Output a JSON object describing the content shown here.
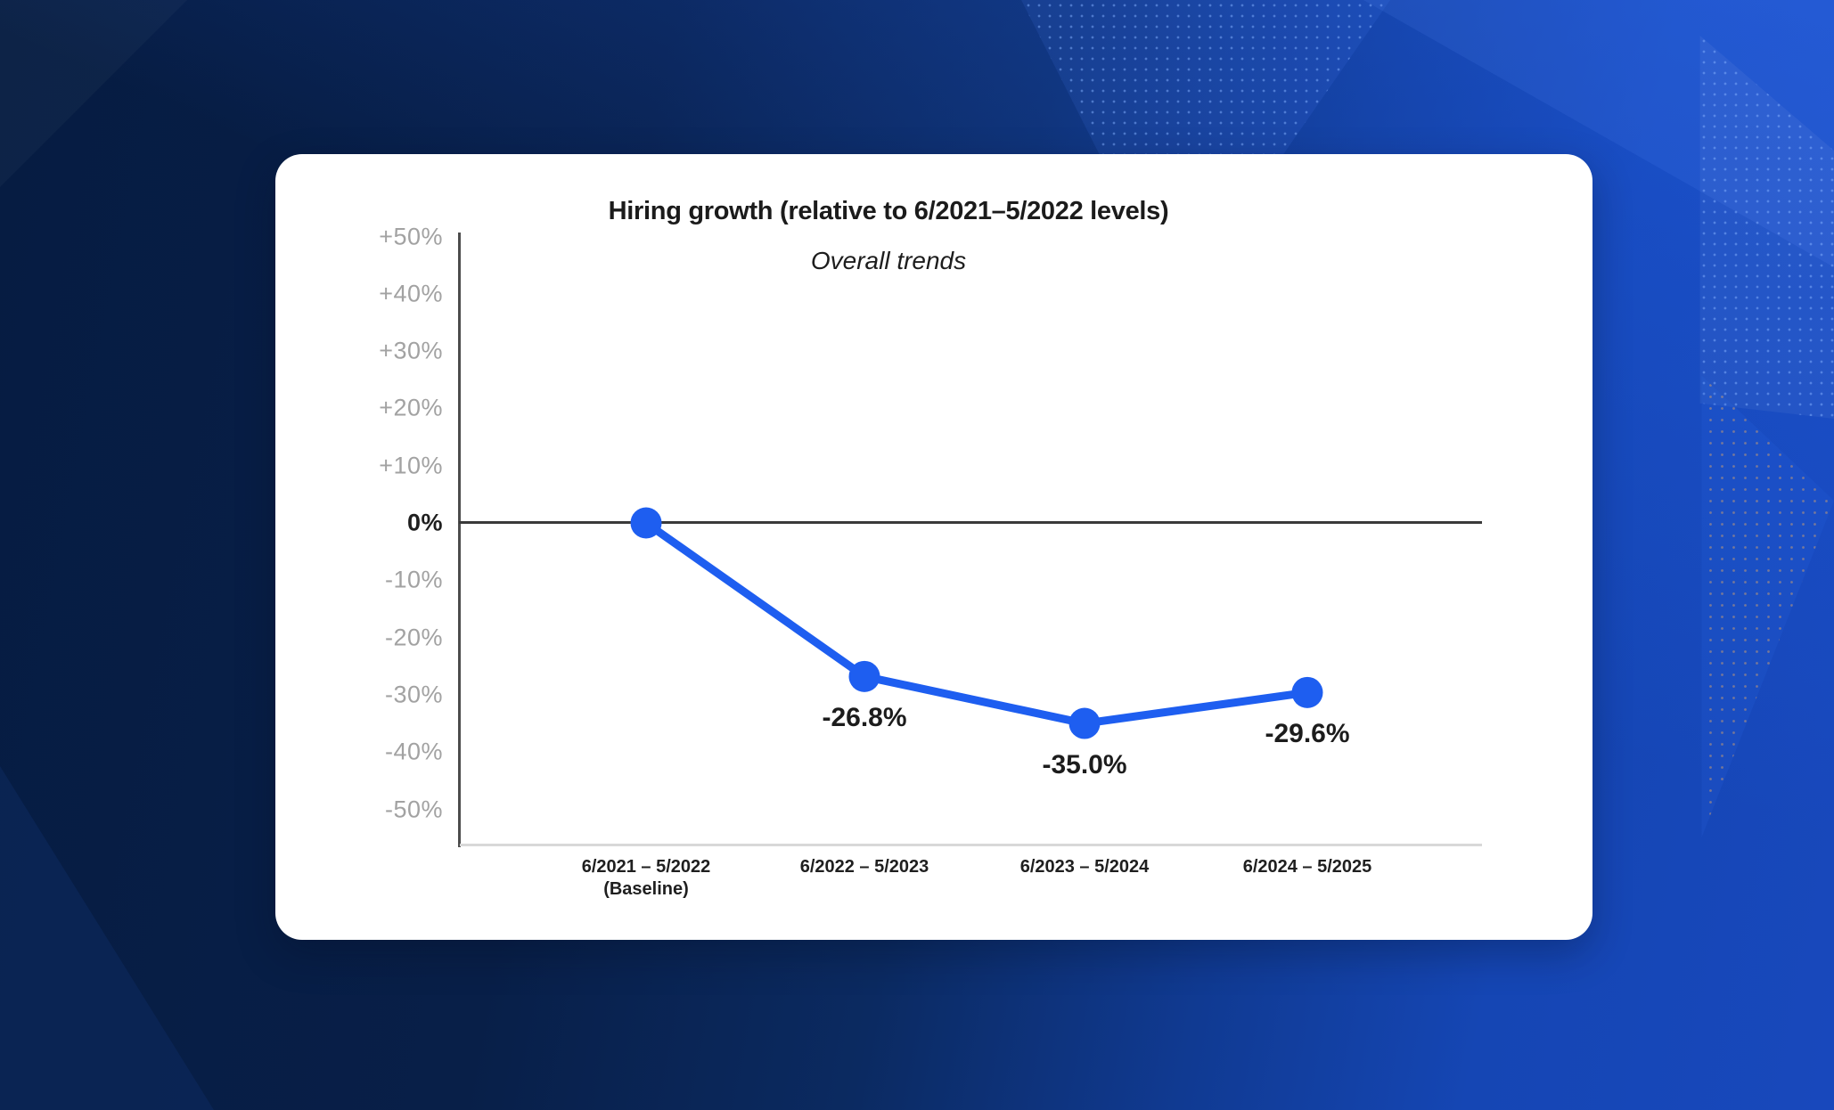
{
  "page": {
    "background_base_color": "#081f48",
    "background_accent_color": "#1c52d6"
  },
  "card": {
    "title": "Hiring growth (relative to 6/2021–5/2022 levels)",
    "subtitle": "Overall trends"
  },
  "chart_data": {
    "type": "line",
    "title": "Hiring growth (relative to 6/2021–5/2022 levels)",
    "subtitle": "Overall trends",
    "categories": [
      "6/2021 – 5/2022",
      "6/2022 – 5/2023",
      "6/2023 – 5/2024",
      "6/2024 – 5/2025"
    ],
    "category_sublabels": [
      "(Baseline)",
      "",
      "",
      ""
    ],
    "values": [
      0,
      -26.8,
      -35.0,
      -29.6
    ],
    "point_labels": [
      "",
      "-26.8%",
      "-35.0%",
      "-29.6%"
    ],
    "unit": "%",
    "ylim": [
      -50,
      50
    ],
    "y_ticks": [
      {
        "value": 50,
        "label": "+50%"
      },
      {
        "value": 40,
        "label": "+40%"
      },
      {
        "value": 30,
        "label": "+30%"
      },
      {
        "value": 20,
        "label": "+20%"
      },
      {
        "value": 10,
        "label": "+10%"
      },
      {
        "value": 0,
        "label": "0%"
      },
      {
        "value": -10,
        "label": "-10%"
      },
      {
        "value": -20,
        "label": "-20%"
      },
      {
        "value": -30,
        "label": "-30%"
      },
      {
        "value": -40,
        "label": "-40%"
      },
      {
        "value": -50,
        "label": "-50%"
      }
    ],
    "gridlines": false,
    "zero_line": true,
    "legend": "none",
    "series_color": "#1e5ef0",
    "axis_colors": {
      "y_axis_line": "#4d4d4d",
      "zero_line": "#3a3a3a",
      "x_base_line": "#d8d8d8",
      "tick_label": "#a2a2a2",
      "zero_tick_label": "#1f1f1f"
    }
  }
}
